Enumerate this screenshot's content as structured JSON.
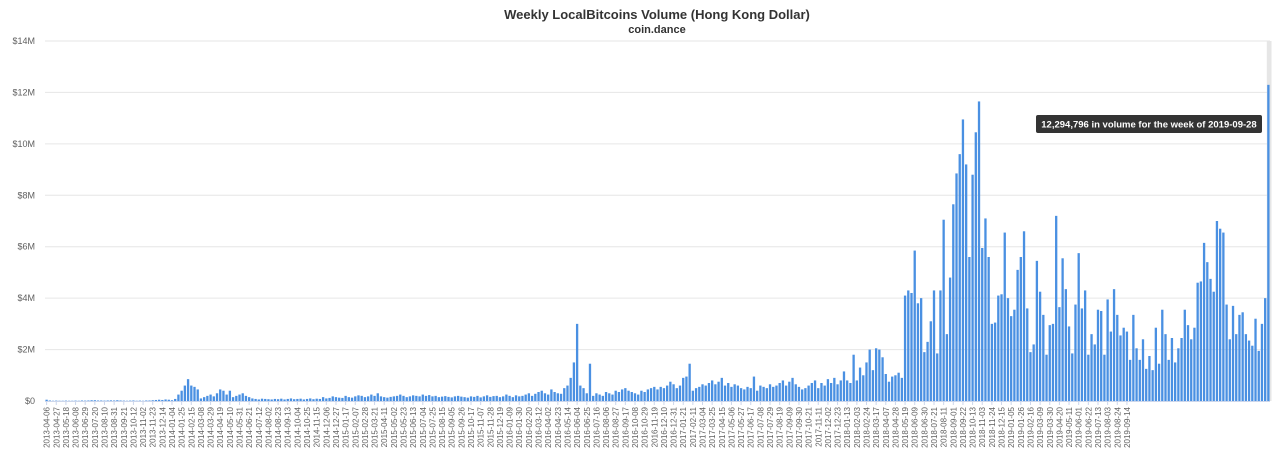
{
  "chart_data": {
    "type": "bar",
    "title": "Weekly LocalBitcoins Volume (Hong Kong Dollar)",
    "subtitle": "coin.dance",
    "xlabel": "",
    "ylabel": "",
    "ylim": [
      0,
      14000000
    ],
    "y_ticks": [
      "$0",
      "$2M",
      "$4M",
      "$6M",
      "$8M",
      "$10M",
      "$12M",
      "$14M"
    ],
    "grid": true,
    "legend": "none",
    "bar_color": "#4a90e2",
    "highlight_color": "#e6e6e6",
    "x_tick_labels": [
      "2013-04-06",
      "2013-04-27",
      "2013-05-18",
      "2013-06-08",
      "2013-06-29",
      "2013-07-20",
      "2013-08-10",
      "2013-08-31",
      "2013-09-21",
      "2013-10-12",
      "2013-11-02",
      "2013-11-23",
      "2013-12-14",
      "2014-01-04",
      "2014-01-25",
      "2014-02-15",
      "2014-03-08",
      "2014-03-29",
      "2014-04-19",
      "2014-05-10",
      "2014-05-31",
      "2014-06-21",
      "2014-07-12",
      "2014-08-02",
      "2014-08-23",
      "2014-09-13",
      "2014-10-04",
      "2014-10-25",
      "2014-11-15",
      "2014-12-06",
      "2014-12-27",
      "2015-01-17",
      "2015-02-07",
      "2015-02-28",
      "2015-03-21",
      "2015-04-11",
      "2015-05-02",
      "2015-05-23",
      "2015-06-13",
      "2015-07-04",
      "2015-07-25",
      "2015-08-15",
      "2015-09-05",
      "2015-09-26",
      "2015-10-17",
      "2015-11-07",
      "2015-11-28",
      "2015-12-19",
      "2016-01-09",
      "2016-01-30",
      "2016-02-20",
      "2016-03-12",
      "2016-04-02",
      "2016-04-23",
      "2016-05-14",
      "2016-06-04",
      "2016-06-25",
      "2016-07-16",
      "2016-08-06",
      "2016-08-27",
      "2016-09-17",
      "2016-10-08",
      "2016-10-29",
      "2016-11-19",
      "2016-12-10",
      "2016-12-31",
      "2017-01-21",
      "2017-02-11",
      "2017-03-04",
      "2017-03-25",
      "2017-04-15",
      "2017-05-06",
      "2017-05-27",
      "2017-06-17",
      "2017-07-08",
      "2017-07-29",
      "2017-08-19",
      "2017-09-09",
      "2017-09-30",
      "2017-10-21",
      "2017-11-11",
      "2017-12-02",
      "2017-12-23",
      "2018-01-13",
      "2018-02-03",
      "2018-02-24",
      "2018-03-17",
      "2018-04-07",
      "2018-04-28",
      "2018-05-19",
      "2018-06-09",
      "2018-06-30",
      "2018-07-21",
      "2018-08-11",
      "2018-09-01",
      "2018-09-22",
      "2018-10-13",
      "2018-11-03",
      "2018-11-24",
      "2018-12-15",
      "2019-01-05",
      "2019-01-26",
      "2019-02-16",
      "2019-03-09",
      "2019-03-30",
      "2019-04-20",
      "2019-05-11",
      "2019-06-01",
      "2019-06-22",
      "2019-07-13",
      "2019-08-03",
      "2019-08-24",
      "2019-09-14"
    ],
    "values": [
      50000,
      20000,
      10000,
      15000,
      10000,
      10000,
      15000,
      10000,
      10000,
      15000,
      10000,
      20000,
      15000,
      20000,
      30000,
      30000,
      20000,
      20000,
      15000,
      20000,
      25000,
      20000,
      30000,
      20000,
      15000,
      10000,
      15000,
      20000,
      10000,
      15000,
      10000,
      20000,
      20000,
      30000,
      40000,
      50000,
      40000,
      60000,
      50000,
      30000,
      80000,
      250000,
      400000,
      600000,
      850000,
      600000,
      550000,
      450000,
      100000,
      150000,
      200000,
      250000,
      180000,
      300000,
      450000,
      400000,
      250000,
      400000,
      150000,
      200000,
      250000,
      300000,
      200000,
      150000,
      100000,
      80000,
      60000,
      90000,
      80000,
      70000,
      60000,
      80000,
      70000,
      90000,
      60000,
      80000,
      100000,
      70000,
      80000,
      90000,
      60000,
      80000,
      100000,
      70000,
      90000,
      80000,
      150000,
      100000,
      120000,
      180000,
      150000,
      130000,
      120000,
      200000,
      150000,
      130000,
      180000,
      220000,
      200000,
      150000,
      180000,
      250000,
      200000,
      300000,
      180000,
      150000,
      130000,
      160000,
      180000,
      200000,
      250000,
      200000,
      150000,
      180000,
      220000,
      200000,
      180000,
      250000,
      200000,
      230000,
      180000,
      200000,
      150000,
      170000,
      190000,
      160000,
      140000,
      180000,
      200000,
      170000,
      150000,
      130000,
      180000,
      160000,
      200000,
      140000,
      180000,
      220000,
      160000,
      190000,
      200000,
      150000,
      180000,
      250000,
      200000,
      150000,
      220000,
      180000,
      200000,
      250000,
      300000,
      200000,
      280000,
      350000,
      400000,
      300000,
      250000,
      450000,
      350000,
      300000,
      280000,
      500000,
      600000,
      900000,
      1500000,
      3000000,
      600000,
      500000,
      300000,
      1450000,
      200000,
      300000,
      250000,
      200000,
      350000,
      300000,
      250000,
      400000,
      350000,
      450000,
      500000,
      400000,
      350000,
      300000,
      250000,
      400000,
      350000,
      450000,
      500000,
      550000,
      450000,
      550000,
      500000,
      600000,
      750000,
      650000,
      500000,
      600000,
      900000,
      950000,
      1450000,
      400000,
      500000,
      550000,
      650000,
      600000,
      700000,
      800000,
      650000,
      750000,
      900000,
      600000,
      700000,
      550000,
      650000,
      600000,
      500000,
      450000,
      550000,
      500000,
      950000,
      400000,
      600000,
      550000,
      500000,
      650000,
      550000,
      600000,
      700000,
      800000,
      600000,
      750000,
      900000,
      650000,
      550000,
      450000,
      500000,
      600000,
      700000,
      800000,
      500000,
      700000,
      600000,
      850000,
      700000,
      900000,
      650000,
      800000,
      1150000,
      800000,
      700000,
      1800000,
      800000,
      1300000,
      1000000,
      1500000,
      2000000,
      1200000,
      2050000,
      2000000,
      1700000,
      1050000,
      750000,
      950000,
      1000000,
      1100000,
      900000,
      4100000,
      4300000,
      4200000,
      5850000,
      3800000,
      4000000,
      1900000,
      2300000,
      3100000,
      4300000,
      1850000,
      4300000,
      7050000,
      2600000,
      4800000,
      7650000,
      8850000,
      9600000,
      10950000,
      9200000,
      5600000,
      8800000,
      10450000,
      11650000,
      5950000,
      7100000,
      5600000,
      3000000,
      3050000,
      4100000,
      4150000,
      6550000,
      4000000,
      3300000,
      3550000,
      5100000,
      5600000,
      6600000,
      3600000,
      1900000,
      2200000,
      5450000,
      4250000,
      3350000,
      1800000,
      2950000,
      3000000,
      7200000,
      3650000,
      5550000,
      4350000,
      2900000,
      1850000,
      3750000,
      5750000,
      3600000,
      4300000,
      1800000,
      2600000,
      2200000,
      3550000,
      3500000,
      1800000,
      3950000,
      2700000,
      4350000,
      3350000,
      2550000,
      2850000,
      2700000,
      1600000,
      3350000,
      2050000,
      1600000,
      2400000,
      1250000,
      1750000,
      1200000,
      2850000,
      1450000,
      3550000,
      2600000,
      1600000,
      2450000,
      1500000,
      2050000,
      2450000,
      3550000,
      2950000,
      2400000,
      2850000,
      4600000,
      4650000,
      6150000,
      5400000,
      4750000,
      4250000,
      7000000,
      6700000,
      6550000,
      3750000,
      2400000,
      3700000,
      2600000,
      3350000,
      3450000,
      2600000,
      2350000,
      2150000,
      3200000,
      1950000,
      3000000,
      4000000,
      12294796
    ],
    "tooltip": {
      "text": "12,294,796 in volume for the week of 2019-09-28",
      "index": -1
    }
  }
}
